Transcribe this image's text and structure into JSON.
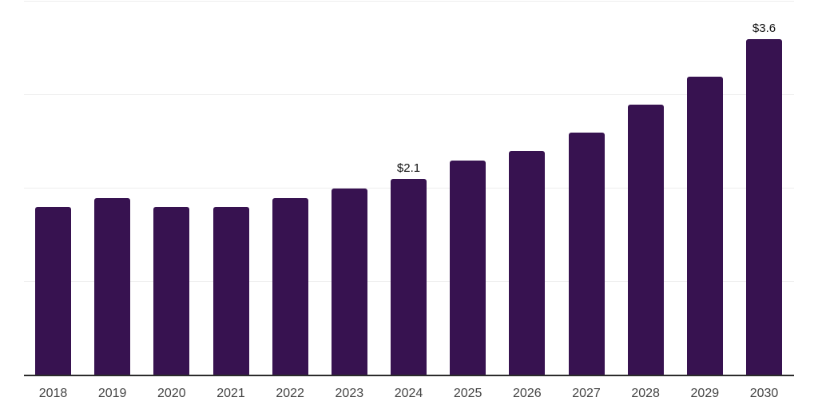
{
  "chart_data": {
    "type": "bar",
    "categories": [
      "2018",
      "2019",
      "2020",
      "2021",
      "2022",
      "2023",
      "2024",
      "2025",
      "2026",
      "2027",
      "2028",
      "2029",
      "2030"
    ],
    "values": [
      1.8,
      1.9,
      1.8,
      1.8,
      1.9,
      2.0,
      2.1,
      2.3,
      2.4,
      2.6,
      2.9,
      3.2,
      3.6
    ],
    "bar_labels": {
      "2024": "$2.1",
      "2030": "$3.6"
    },
    "ylim": [
      0,
      4
    ],
    "y_gridline_values": [
      1,
      2,
      3,
      4
    ],
    "grid": "horizontal",
    "legend": "none",
    "colors": {
      "bar": "#371250",
      "gridline": "#eeeeee",
      "axis_line": "#2b2b2b",
      "tick_label": "#444444",
      "bar_label": "#111111",
      "background": "#ffffff"
    }
  }
}
